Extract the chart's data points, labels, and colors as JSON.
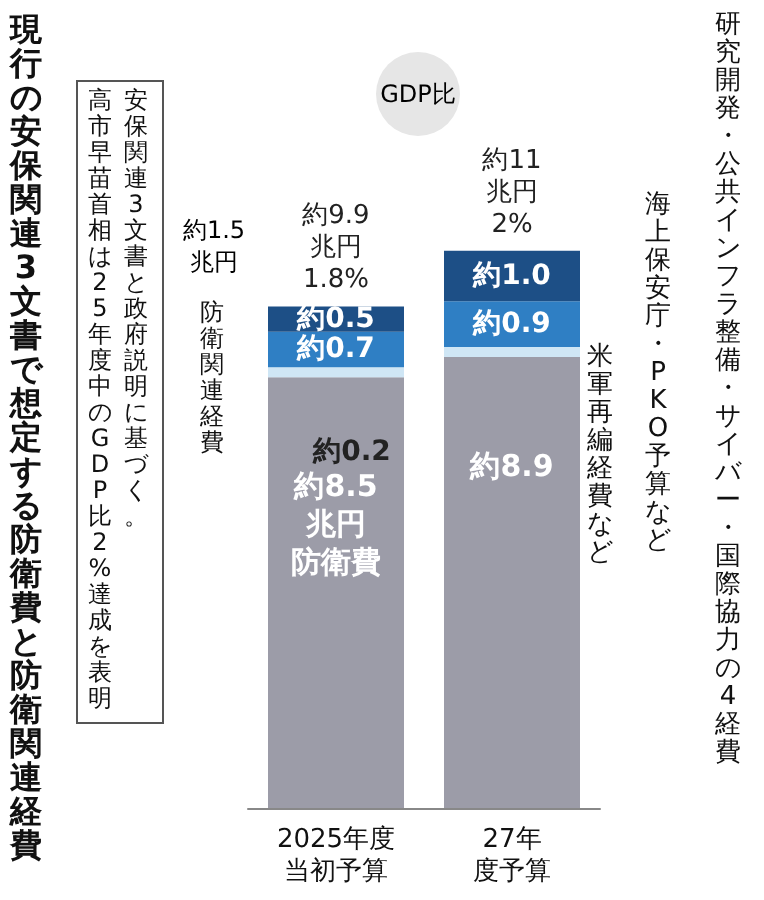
{
  "chart_data": {
    "type": "bar",
    "stacked": true,
    "title": "現行の安保関連3文書で想定する防衛費と防衛関連経費",
    "categories": [
      "2025年度当初予算",
      "27年度予算"
    ],
    "series": [
      {
        "name": "防衛費",
        "color": "#9c9ca8",
        "values": [
          8.5,
          8.9
        ],
        "value_labels": [
          "約8.5\n兆円",
          "約8.9"
        ]
      },
      {
        "name": "米軍再編経費など",
        "color": "#cfe6f5",
        "values": [
          0.2,
          0.2
        ],
        "value_labels": [
          "約0.2",
          null
        ]
      },
      {
        "name": "海上保安庁・PKO予算など",
        "color": "#2f7fc4",
        "values": [
          0.7,
          0.9
        ],
        "value_labels": [
          "約0.7",
          "約0.9"
        ]
      },
      {
        "name": "研究開発・公共インフラ整備・サイバー・国際協力の4経費",
        "color": "#1d4f86",
        "values": [
          0.5,
          1.0
        ],
        "value_labels": [
          "約0.5",
          "約1.0"
        ]
      }
    ],
    "totals": [
      "約9.9\n兆円\n1.8%",
      "約11\n兆円\n2%"
    ],
    "annotations": [
      "安保関連3文書と政府説明に基づく。",
      "高市早苗首相は25年度中のGDP比2%達成を表明",
      "GDP比",
      "約1.5兆円",
      "防衛関連経費"
    ]
  }
}
